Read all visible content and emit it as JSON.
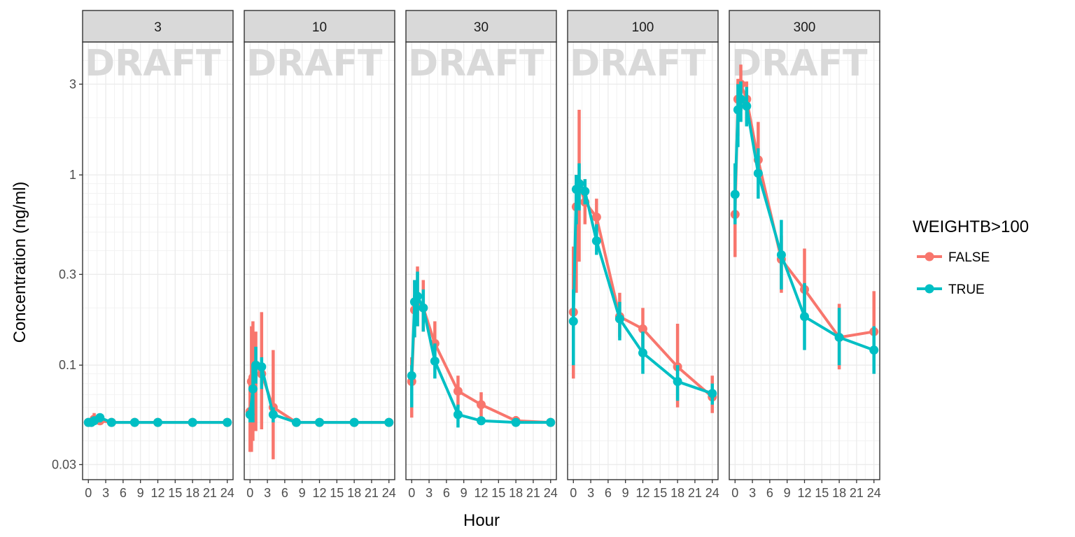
{
  "chart_data": {
    "type": "line",
    "xlabel": "Hour",
    "ylabel": "Concentration (ng/ml)",
    "y_scale": "log",
    "ylim": [
      0.025,
      5
    ],
    "xlim": [
      -1,
      25
    ],
    "x_ticks": [
      0,
      3,
      6,
      9,
      12,
      15,
      18,
      21,
      24
    ],
    "x_tick_labels": [
      "0",
      "3",
      "6",
      "9",
      "12",
      "15",
      "18",
      "21",
      "24"
    ],
    "y_ticks": [
      0.03,
      0.1,
      0.3,
      1,
      3
    ],
    "y_tick_labels": [
      "0.03",
      "0.1",
      "0.3",
      "1",
      "3"
    ],
    "grid": true,
    "watermark": "DRAFT",
    "facets": [
      "3",
      "10",
      "30",
      "100",
      "300"
    ],
    "legend": {
      "title": "WEIGHTB>100",
      "position": "right",
      "entries": [
        {
          "label": "FALSE",
          "color": "#F8766D"
        },
        {
          "label": "TRUE",
          "color": "#00BFC4"
        }
      ]
    },
    "series": [
      {
        "facet": "3",
        "group": "FALSE",
        "color": "#F8766D",
        "points": [
          {
            "x": 0,
            "y": 0.05
          },
          {
            "x": 0.5,
            "y": 0.05
          },
          {
            "x": 1,
            "y": 0.052,
            "lo": 0.05,
            "hi": 0.056
          },
          {
            "x": 2,
            "y": 0.051,
            "lo": 0.05,
            "hi": 0.054
          },
          {
            "x": 4,
            "y": 0.05
          },
          {
            "x": 8,
            "y": 0.05
          },
          {
            "x": 12,
            "y": 0.05
          },
          {
            "x": 18,
            "y": 0.05
          },
          {
            "x": 24,
            "y": 0.05
          }
        ]
      },
      {
        "facet": "3",
        "group": "TRUE",
        "color": "#00BFC4",
        "points": [
          {
            "x": 0,
            "y": 0.05
          },
          {
            "x": 0.5,
            "y": 0.05
          },
          {
            "x": 1,
            "y": 0.051
          },
          {
            "x": 2,
            "y": 0.053,
            "lo": 0.05,
            "hi": 0.055
          },
          {
            "x": 4,
            "y": 0.05
          },
          {
            "x": 8,
            "y": 0.05
          },
          {
            "x": 12,
            "y": 0.05
          },
          {
            "x": 18,
            "y": 0.05
          },
          {
            "x": 24,
            "y": 0.05
          }
        ]
      },
      {
        "facet": "10",
        "group": "FALSE",
        "color": "#F8766D",
        "points": [
          {
            "x": 0,
            "y": 0.057,
            "lo": 0.035,
            "hi": 0.085
          },
          {
            "x": 0.25,
            "y": 0.082,
            "lo": 0.035,
            "hi": 0.16
          },
          {
            "x": 0.5,
            "y": 0.086,
            "lo": 0.04,
            "hi": 0.17
          },
          {
            "x": 1,
            "y": 0.1,
            "lo": 0.045,
            "hi": 0.15
          },
          {
            "x": 2,
            "y": 0.09,
            "lo": 0.046,
            "hi": 0.19
          },
          {
            "x": 4,
            "y": 0.06,
            "lo": 0.032,
            "hi": 0.12
          },
          {
            "x": 8,
            "y": 0.05
          },
          {
            "x": 12,
            "y": 0.05
          },
          {
            "x": 18,
            "y": 0.05
          },
          {
            "x": 24,
            "y": 0.05
          }
        ]
      },
      {
        "facet": "10",
        "group": "TRUE",
        "color": "#00BFC4",
        "points": [
          {
            "x": 0,
            "y": 0.055,
            "lo": 0.05,
            "hi": 0.06
          },
          {
            "x": 0.5,
            "y": 0.075,
            "lo": 0.05,
            "hi": 0.1
          },
          {
            "x": 1,
            "y": 0.1,
            "lo": 0.08,
            "hi": 0.125
          },
          {
            "x": 2,
            "y": 0.098,
            "lo": 0.075,
            "hi": 0.11
          },
          {
            "x": 4,
            "y": 0.055,
            "lo": 0.05,
            "hi": 0.06
          },
          {
            "x": 8,
            "y": 0.05
          },
          {
            "x": 12,
            "y": 0.05
          },
          {
            "x": 18,
            "y": 0.05
          },
          {
            "x": 24,
            "y": 0.05
          }
        ]
      },
      {
        "facet": "30",
        "group": "FALSE",
        "color": "#F8766D",
        "points": [
          {
            "x": 0,
            "y": 0.082,
            "lo": 0.053,
            "hi": 0.11
          },
          {
            "x": 0.5,
            "y": 0.195,
            "lo": 0.14,
            "hi": 0.28
          },
          {
            "x": 1,
            "y": 0.21,
            "lo": 0.16,
            "hi": 0.33
          },
          {
            "x": 2,
            "y": 0.2,
            "lo": 0.15,
            "hi": 0.28
          },
          {
            "x": 4,
            "y": 0.13,
            "lo": 0.1,
            "hi": 0.17
          },
          {
            "x": 8,
            "y": 0.073,
            "lo": 0.06,
            "hi": 0.088
          },
          {
            "x": 12,
            "y": 0.062,
            "lo": 0.05,
            "hi": 0.072
          },
          {
            "x": 18,
            "y": 0.051,
            "lo": 0.048,
            "hi": 0.054
          },
          {
            "x": 24,
            "y": 0.05,
            "lo": 0.049,
            "hi": 0.052
          }
        ]
      },
      {
        "facet": "30",
        "group": "TRUE",
        "color": "#00BFC4",
        "points": [
          {
            "x": 0,
            "y": 0.088,
            "lo": 0.06,
            "hi": 0.1
          },
          {
            "x": 0.5,
            "y": 0.215,
            "lo": 0.14,
            "hi": 0.28
          },
          {
            "x": 1,
            "y": 0.23,
            "lo": 0.16,
            "hi": 0.31
          },
          {
            "x": 2,
            "y": 0.2,
            "lo": 0.15,
            "hi": 0.25
          },
          {
            "x": 4,
            "y": 0.105,
            "lo": 0.085,
            "hi": 0.13
          },
          {
            "x": 8,
            "y": 0.055,
            "lo": 0.047,
            "hi": 0.062
          },
          {
            "x": 12,
            "y": 0.051
          },
          {
            "x": 18,
            "y": 0.05
          },
          {
            "x": 24,
            "y": 0.05
          }
        ]
      },
      {
        "facet": "100",
        "group": "FALSE",
        "color": "#F8766D",
        "points": [
          {
            "x": 0,
            "y": 0.19,
            "lo": 0.085,
            "hi": 0.42
          },
          {
            "x": 0.5,
            "y": 0.68,
            "lo": 0.24,
            "hi": 1.0
          },
          {
            "x": 1,
            "y": 0.9,
            "lo": 0.35,
            "hi": 2.2
          },
          {
            "x": 2,
            "y": 0.72,
            "lo": 0.55,
            "hi": 0.95
          },
          {
            "x": 4,
            "y": 0.6,
            "lo": 0.48,
            "hi": 0.75
          },
          {
            "x": 8,
            "y": 0.18,
            "lo": 0.14,
            "hi": 0.24
          },
          {
            "x": 12,
            "y": 0.155,
            "lo": 0.12,
            "hi": 0.2
          },
          {
            "x": 18,
            "y": 0.098,
            "lo": 0.06,
            "hi": 0.165
          },
          {
            "x": 24,
            "y": 0.068,
            "lo": 0.056,
            "hi": 0.088
          }
        ]
      },
      {
        "facet": "100",
        "group": "TRUE",
        "color": "#00BFC4",
        "points": [
          {
            "x": 0,
            "y": 0.17,
            "lo": 0.1,
            "hi": 0.25
          },
          {
            "x": 0.5,
            "y": 0.84,
            "lo": 0.55,
            "hi": 1.0
          },
          {
            "x": 1,
            "y": 0.9,
            "lo": 0.65,
            "hi": 1.15
          },
          {
            "x": 2,
            "y": 0.82,
            "lo": 0.7,
            "hi": 0.95
          },
          {
            "x": 4,
            "y": 0.45,
            "lo": 0.38,
            "hi": 0.55
          },
          {
            "x": 8,
            "y": 0.175,
            "lo": 0.135,
            "hi": 0.215
          },
          {
            "x": 12,
            "y": 0.116,
            "lo": 0.09,
            "hi": 0.15
          },
          {
            "x": 18,
            "y": 0.082,
            "lo": 0.065,
            "hi": 0.1
          },
          {
            "x": 24,
            "y": 0.071,
            "lo": 0.062,
            "hi": 0.08
          }
        ]
      },
      {
        "facet": "300",
        "group": "FALSE",
        "color": "#F8766D",
        "points": [
          {
            "x": 0,
            "y": 0.62,
            "lo": 0.37,
            "hi": 0.8
          },
          {
            "x": 0.5,
            "y": 2.5,
            "lo": 1.6,
            "hi": 3.2
          },
          {
            "x": 1,
            "y": 3.0,
            "lo": 2.2,
            "hi": 3.8
          },
          {
            "x": 2,
            "y": 2.5,
            "lo": 1.9,
            "hi": 3.1
          },
          {
            "x": 4,
            "y": 1.2,
            "lo": 0.95,
            "hi": 1.9
          },
          {
            "x": 8,
            "y": 0.36,
            "lo": 0.24,
            "hi": 0.48
          },
          {
            "x": 12,
            "y": 0.25,
            "lo": 0.17,
            "hi": 0.41
          },
          {
            "x": 18,
            "y": 0.14,
            "lo": 0.095,
            "hi": 0.21
          },
          {
            "x": 24,
            "y": 0.15,
            "lo": 0.11,
            "hi": 0.245
          }
        ]
      },
      {
        "facet": "300",
        "group": "TRUE",
        "color": "#00BFC4",
        "points": [
          {
            "x": 0,
            "y": 0.79,
            "lo": 0.55,
            "hi": 1.15
          },
          {
            "x": 0.5,
            "y": 2.2,
            "lo": 1.4,
            "hi": 3.0
          },
          {
            "x": 1,
            "y": 2.5,
            "lo": 1.9,
            "hi": 3.1
          },
          {
            "x": 2,
            "y": 2.3,
            "lo": 1.8,
            "hi": 2.9
          },
          {
            "x": 4,
            "y": 1.02,
            "lo": 0.75,
            "hi": 1.38
          },
          {
            "x": 8,
            "y": 0.38,
            "lo": 0.25,
            "hi": 0.58
          },
          {
            "x": 12,
            "y": 0.18,
            "lo": 0.12,
            "hi": 0.27
          },
          {
            "x": 18,
            "y": 0.14,
            "lo": 0.1,
            "hi": 0.2
          },
          {
            "x": 24,
            "y": 0.12,
            "lo": 0.09,
            "hi": 0.16
          }
        ]
      }
    ]
  }
}
